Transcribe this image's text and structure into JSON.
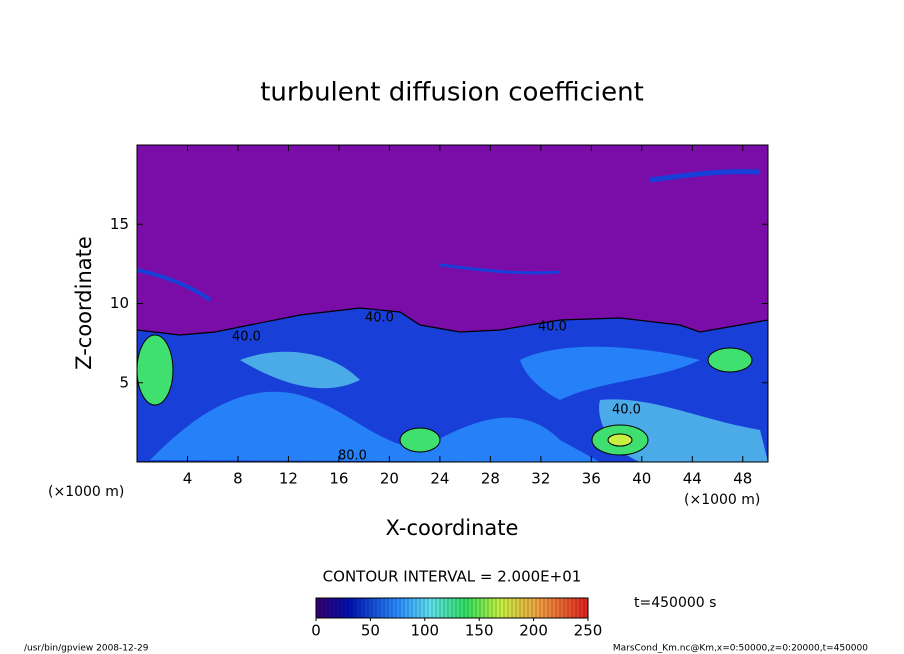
{
  "chart_data": {
    "type": "contour",
    "title": "turbulent diffusion coefficient",
    "x_label": "X-coordinate",
    "y_label": "Z-coordinate",
    "x_unit": "(×1000 m)",
    "y_unit": "(×1000 m)",
    "xlim": [
      0,
      50
    ],
    "xticks": [
      4,
      8,
      12,
      16,
      20,
      24,
      28,
      32,
      36,
      40,
      44,
      48
    ],
    "ylim": [
      0,
      20
    ],
    "yticks": [
      5,
      10,
      15
    ],
    "contour_labels": [
      "40.0",
      "40.0",
      "40.0",
      "40.0",
      "80.0"
    ],
    "contour_interval": "CONTOUR INTERVAL = 2.000E+01",
    "time_label": "t=450000 s",
    "colorbar": {
      "lim": [
        0,
        250
      ],
      "ticks": [
        0,
        50,
        100,
        150,
        200,
        250
      ]
    },
    "footer_left": "/usr/bin/gpview   2008-12-29",
    "footer_right": "MarsCond_Km.nc@Km,x=0:50000,z=0:20000,t=450000"
  }
}
